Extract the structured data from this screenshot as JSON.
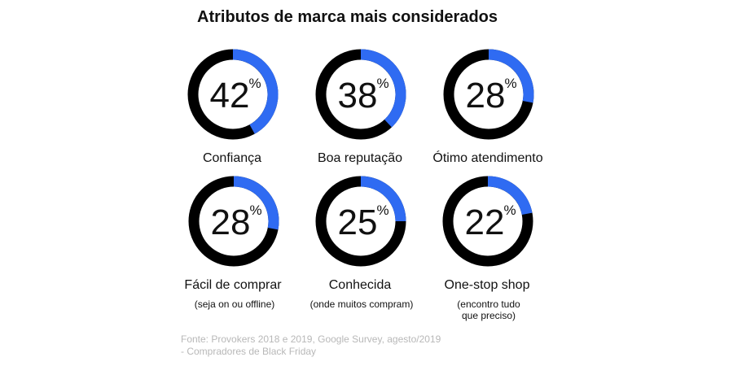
{
  "chart_data": {
    "type": "pie",
    "title": "Atributos de marca mais considerados",
    "unit": "%",
    "items": [
      {
        "value": 42,
        "value_label": "42",
        "label": "Confiança",
        "sublabel": []
      },
      {
        "value": 38,
        "value_label": "38",
        "label": "Boa reputação",
        "sublabel": []
      },
      {
        "value": 28,
        "value_label": "28",
        "label": "Ótimo atendimento",
        "sublabel": []
      },
      {
        "value": 28,
        "value_label": "28",
        "label": "Fácil de comprar",
        "sublabel": [
          "(seja on ou offline)"
        ]
      },
      {
        "value": 25,
        "value_label": "25",
        "label": "Conhecida",
        "sublabel": [
          "(onde muitos compram)"
        ]
      },
      {
        "value": 22,
        "value_label": "22",
        "label": "One-stop shop",
        "sublabel": [
          "(encontro tudo",
          "que preciso)"
        ]
      }
    ],
    "colors": {
      "highlight": "#2f6bf2",
      "track": "#000000",
      "text": "#111111",
      "source_text": "#b8b8b8"
    }
  },
  "source": {
    "line1": "Fonte: Provokers 2018 e 2019, Google Survey, agesto/2019",
    "line2": "- Compradores de Black Friday"
  }
}
